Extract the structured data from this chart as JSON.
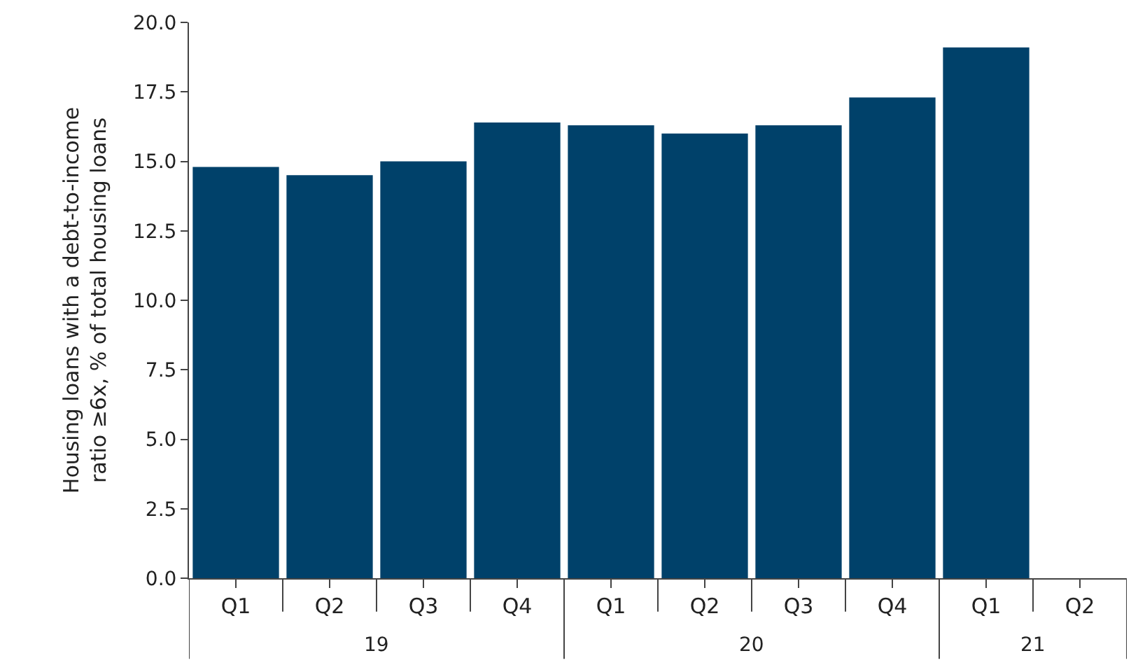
{
  "chart_data": {
    "type": "bar",
    "ylabel": "Housing loans with a debt-to-income\nratio ≥6x, % of total housing loans",
    "categories": [
      "Q1",
      "Q2",
      "Q3",
      "Q4",
      "Q1",
      "Q2",
      "Q3",
      "Q4",
      "Q1",
      "Q2"
    ],
    "values": [
      14.8,
      14.5,
      15.0,
      16.4,
      16.3,
      16.0,
      16.3,
      17.3,
      19.1,
      null
    ],
    "color": "#00416a",
    "ylim": [
      0,
      20
    ],
    "yticks": [
      {
        "value": 0,
        "label": "0.0"
      },
      {
        "value": 2.5,
        "label": "2.5"
      },
      {
        "value": 5,
        "label": "5.0"
      },
      {
        "value": 7.5,
        "label": "7.5"
      },
      {
        "value": 10,
        "label": "10.0"
      },
      {
        "value": 12.5,
        "label": "12.5"
      },
      {
        "value": 15,
        "label": "15.0"
      },
      {
        "value": 17.5,
        "label": "17.5"
      },
      {
        "value": 20,
        "label": "20.0"
      }
    ],
    "annotations": [
      "19",
      "20",
      "21"
    ],
    "legend": false
  }
}
